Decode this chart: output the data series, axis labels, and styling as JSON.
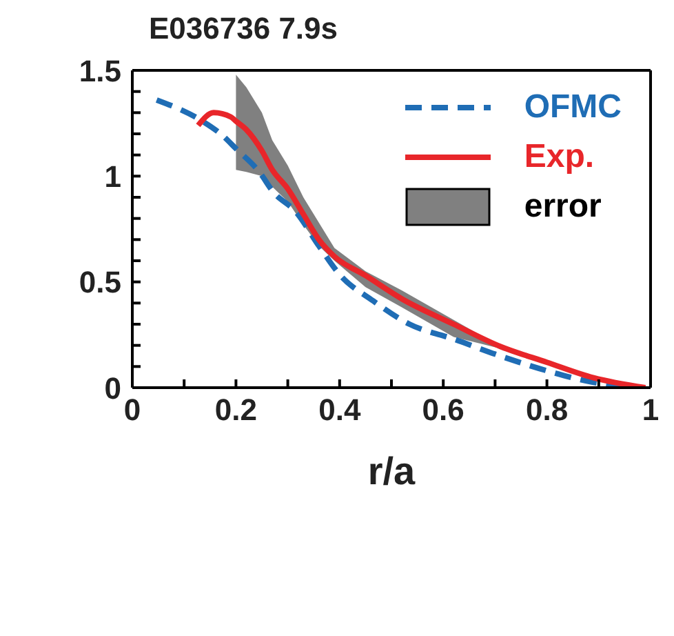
{
  "chart_data": {
    "type": "line",
    "title": "E036736  7.9s",
    "xlabel": "r/a",
    "xlim": [
      0,
      1
    ],
    "xticks": [
      0,
      {
        "value": 0.1,
        "label": null
      },
      0.2,
      {
        "value": 0.3,
        "label": null
      },
      0.4,
      {
        "value": 0.5,
        "label": null
      },
      0.6,
      {
        "value": 0.7,
        "label": null
      },
      0.8,
      {
        "value": 0.9,
        "label": null
      },
      1
    ],
    "ylim": [
      0,
      1.5
    ],
    "yticks": [
      0,
      {
        "value": 0.1,
        "label": null
      },
      {
        "value": 0.2,
        "label": null
      },
      {
        "value": 0.3,
        "label": null
      },
      {
        "value": 0.4,
        "label": null
      },
      0.5,
      {
        "value": 0.6,
        "label": null
      },
      {
        "value": 0.7,
        "label": null
      },
      {
        "value": 0.8,
        "label": null
      },
      {
        "value": 0.9,
        "label": null
      },
      1,
      {
        "value": 1.1,
        "label": null
      },
      {
        "value": 1.2,
        "label": null
      },
      {
        "value": 1.3,
        "label": null
      },
      {
        "value": 1.4,
        "label": null
      },
      1.5
    ],
    "legend": "top right",
    "grid": false,
    "marker": "none",
    "series": [
      {
        "name": "OFMC",
        "color": "#1f6db5",
        "line_style": "dashed",
        "x": [
          0.047,
          0.135,
          0.175,
          0.2,
          0.245,
          0.272,
          0.316,
          0.36,
          0.4,
          0.465,
          0.535,
          0.62,
          0.71,
          0.8,
          0.89,
          0.975
        ],
        "values": [
          1.36,
          1.26,
          1.19,
          1.13,
          1.02,
          0.925,
          0.83,
          0.67,
          0.535,
          0.41,
          0.3,
          0.23,
          0.15,
          0.08,
          0.025,
          0
        ]
      },
      {
        "name": "Exp.",
        "color": "#e8262a",
        "line_style": "solid",
        "x": [
          0.127,
          0.157,
          0.19,
          0.2,
          0.22,
          0.25,
          0.27,
          0.3,
          0.33,
          0.36,
          0.39,
          0.45,
          0.52,
          0.62,
          0.71,
          0.8,
          0.89,
          0.99
        ],
        "values": [
          1.24,
          1.3,
          1.28,
          1.26,
          1.22,
          1.12,
          1.03,
          0.94,
          0.82,
          0.7,
          0.62,
          0.53,
          0.42,
          0.3,
          0.195,
          0.12,
          0.047,
          0
        ],
        "lower": [
          null,
          null,
          null,
          1.03,
          1.02,
          1.0,
          0.95,
          0.88,
          0.77,
          0.67,
          0.6,
          0.475,
          0.38,
          0.24,
          0.185,
          null,
          null,
          null
        ],
        "upper": [
          null,
          null,
          null,
          1.48,
          1.42,
          1.3,
          1.17,
          1.05,
          0.9,
          0.78,
          0.66,
          0.55,
          0.46,
          0.32,
          0.195,
          null,
          null,
          null
        ]
      }
    ],
    "annotations": [
      "error"
    ]
  }
}
